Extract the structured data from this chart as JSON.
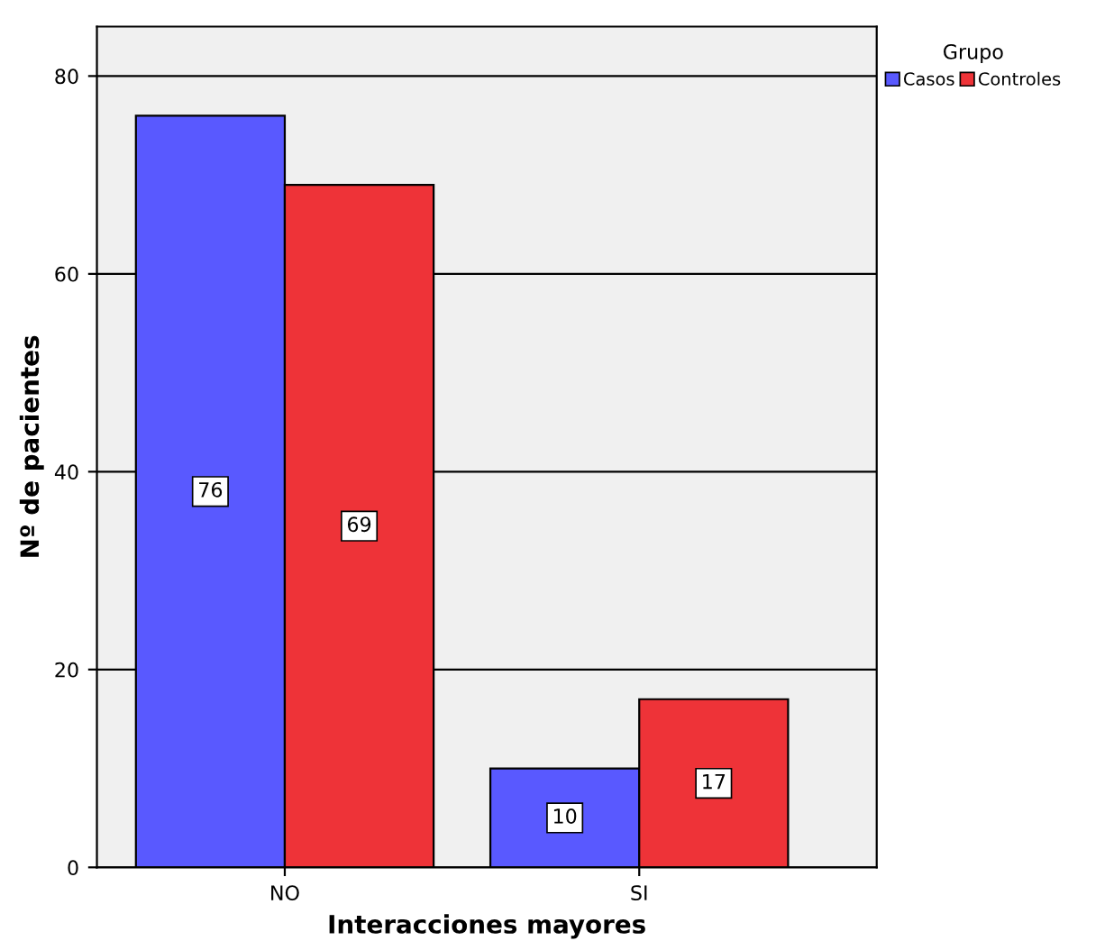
{
  "chart_data": {
    "type": "bar",
    "xlabel": "Interacciones mayores",
    "ylabel": "Nº de pacientes",
    "legend_title": "Grupo",
    "categories": [
      "NO",
      "SI"
    ],
    "series": [
      {
        "name": "Casos",
        "color": "#5959ff",
        "values": [
          76,
          10
        ]
      },
      {
        "name": "Controles",
        "color": "#ee3338",
        "values": [
          69,
          17
        ]
      }
    ],
    "ylim": [
      0,
      85
    ],
    "yticks": [
      0,
      20,
      40,
      60,
      80
    ],
    "grid": "y",
    "legend": "top right",
    "data_labels": true
  }
}
